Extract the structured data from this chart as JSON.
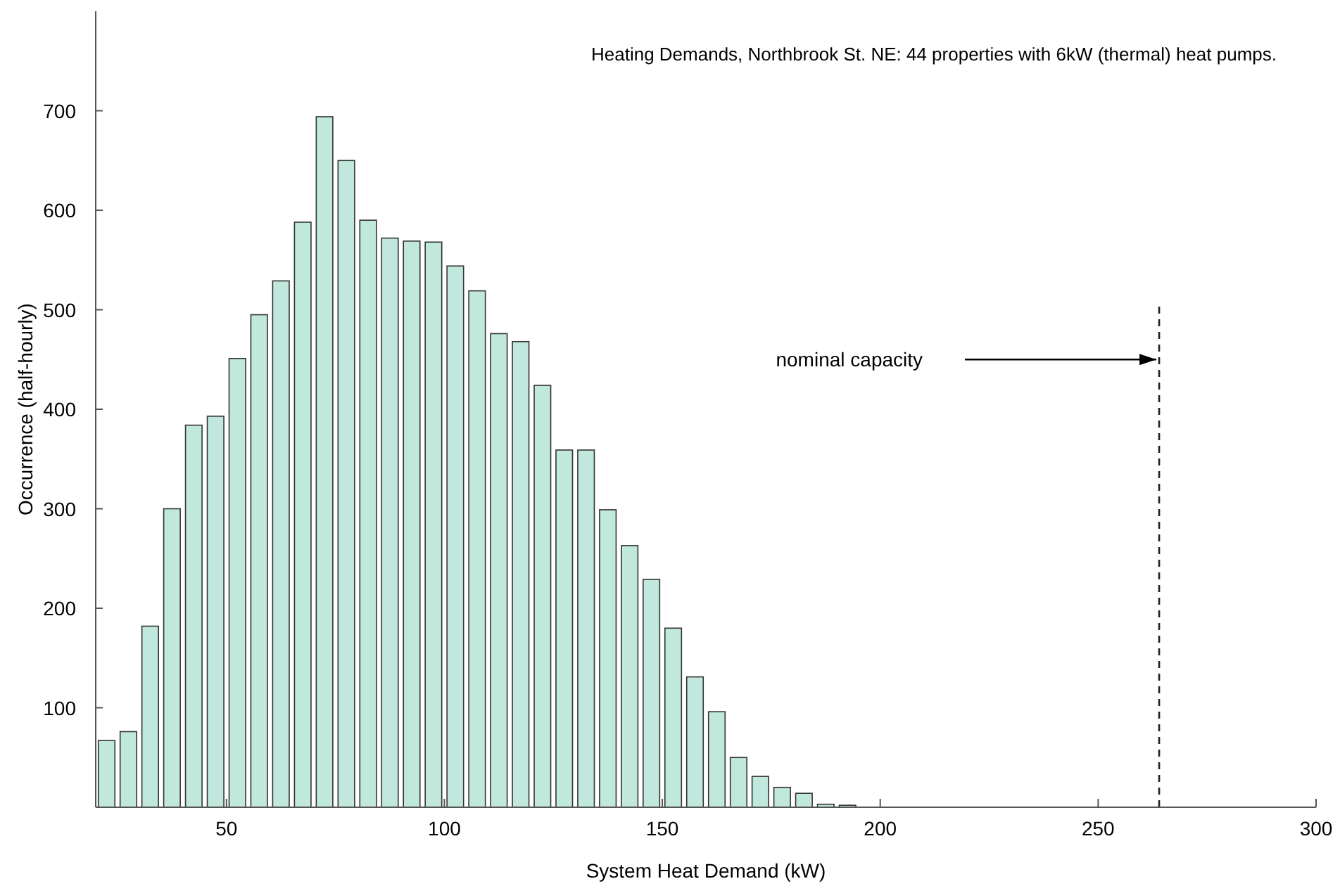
{
  "chart_data": {
    "type": "histogram",
    "title": "Heating Demands, Northbrook St. NE: 44 properties with 6kW (thermal) heat pumps.",
    "xlabel": "System Heat Demand (kW)",
    "ylabel": "Occurrence (half-hourly)",
    "bins": [
      20,
      25,
      30,
      35,
      40,
      45,
      50,
      55,
      60,
      65,
      70,
      75,
      80,
      85,
      90,
      95,
      100,
      105,
      110,
      115,
      120,
      125,
      130,
      135,
      140,
      145,
      150,
      155,
      160,
      165,
      170,
      175,
      180,
      185,
      190,
      195
    ],
    "values": [
      67,
      76,
      182,
      300,
      384,
      393,
      451,
      495,
      529,
      588,
      694,
      650,
      590,
      572,
      569,
      568,
      544,
      519,
      476,
      468,
      424,
      359,
      359,
      299,
      263,
      229,
      180,
      131,
      96,
      50,
      31,
      20,
      14,
      3,
      2
    ],
    "color": "#c0e8dc",
    "xlim": [
      20,
      300
    ],
    "xticks": [
      50,
      100,
      150,
      200,
      250,
      300
    ],
    "ylim": [
      0,
      800
    ],
    "yticks": [
      100,
      200,
      300,
      400,
      500,
      600,
      700
    ],
    "grid": false,
    "ref_lines": [
      {
        "axis": "x",
        "value": 264,
        "line_style": "dashed",
        "color": "#222222"
      }
    ],
    "annotations": [
      "nominal capacity"
    ]
  }
}
